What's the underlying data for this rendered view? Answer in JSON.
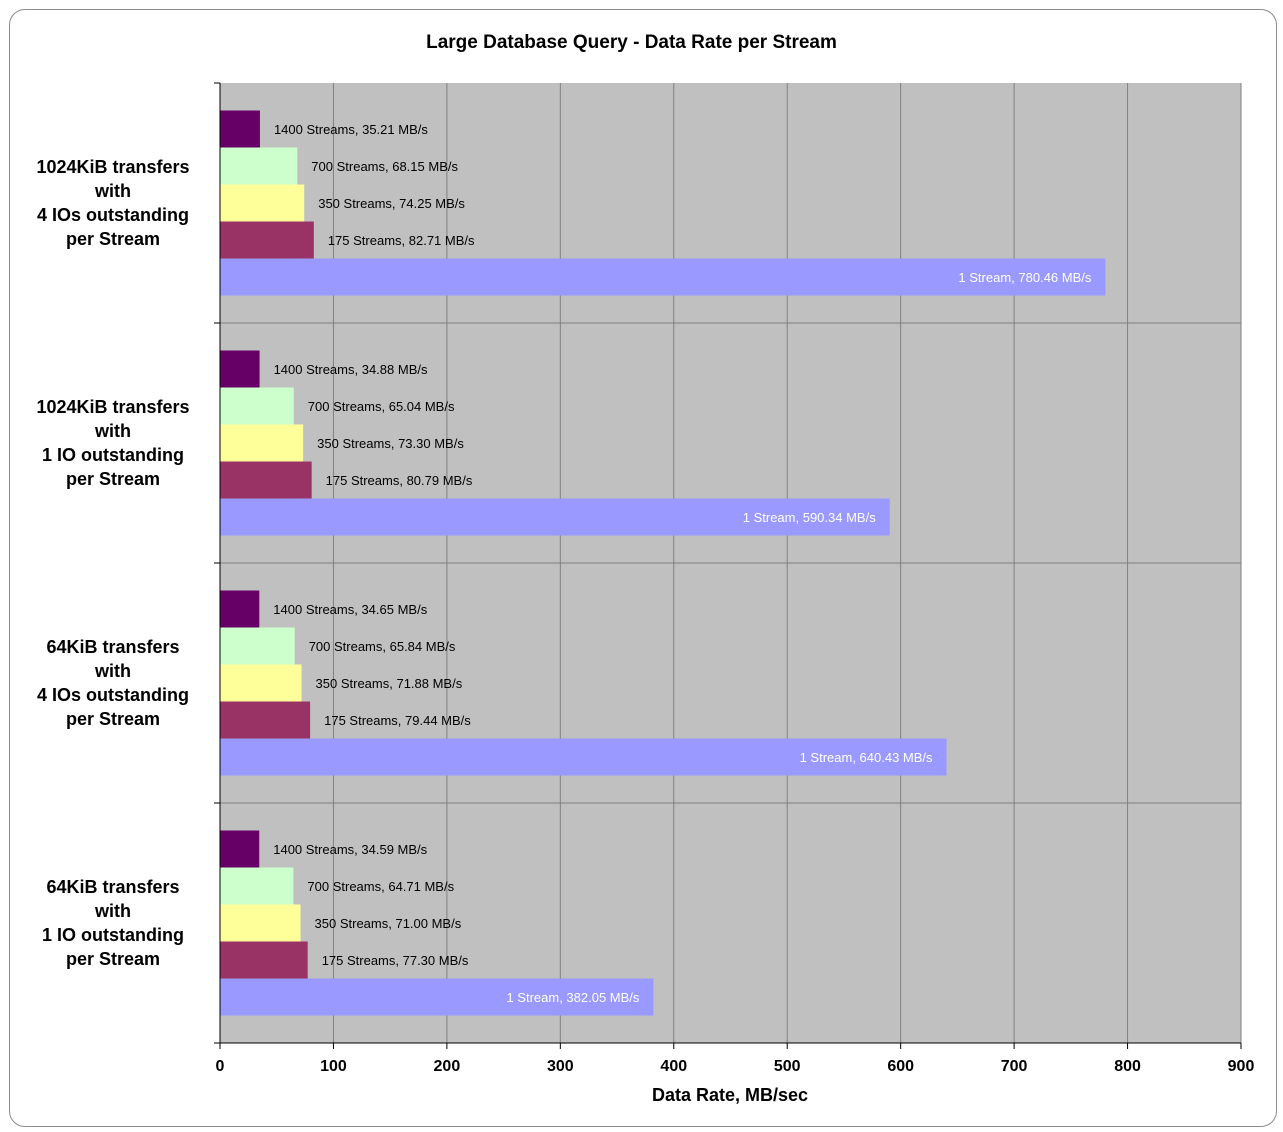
{
  "chart_data": {
    "type": "bar",
    "orientation": "horizontal",
    "title": "Large Database Query - Data Rate per Stream",
    "xlabel": "Data Rate, MB/sec",
    "ylabel": "",
    "xlim": [
      0,
      900
    ],
    "xticks": [
      0,
      100,
      200,
      300,
      400,
      500,
      600,
      700,
      800,
      900
    ],
    "grid": true,
    "legend": "none",
    "colors": {
      "plot_background": "#c0c0c0",
      "gridline": "#808080"
    },
    "categories": [
      [
        "1024KiB transfers",
        "with",
        "4 IOs outstanding",
        "per Stream"
      ],
      [
        "1024KiB transfers",
        "with",
        "1 IO outstanding",
        "per Stream"
      ],
      [
        "64KiB transfers",
        "with",
        "4 IOs outstanding",
        "per Stream"
      ],
      [
        "64KiB transfers",
        "with",
        "1 IO outstanding",
        "per Stream"
      ]
    ],
    "series": [
      {
        "color": "#660066",
        "values": [
          35.21,
          34.88,
          34.65,
          34.59
        ],
        "labels": [
          "1400 Streams, 35.21 MB/s",
          "1400 Streams, 34.88 MB/s",
          "1400 Streams, 34.65 MB/s",
          "1400 Streams, 34.59 MB/s"
        ],
        "label_color": "#000000"
      },
      {
        "color": "#ccffcc",
        "values": [
          68.15,
          65.04,
          65.84,
          64.71
        ],
        "labels": [
          "700 Streams, 68.15 MB/s",
          "700 Streams, 65.04 MB/s",
          "700 Streams, 65.84 MB/s",
          "700 Streams, 64.71 MB/s"
        ],
        "label_color": "#000000"
      },
      {
        "color": "#ffff99",
        "values": [
          74.25,
          73.3,
          71.88,
          71.0
        ],
        "labels": [
          "350 Streams, 74.25 MB/s",
          "350 Streams, 73.30 MB/s",
          "350 Streams, 71.88 MB/s",
          "350 Streams, 71.00 MB/s"
        ],
        "label_color": "#000000"
      },
      {
        "color": "#993366",
        "values": [
          82.71,
          80.79,
          79.44,
          77.3
        ],
        "labels": [
          "175 Streams, 82.71 MB/s",
          "175 Streams, 80.79 MB/s",
          "175 Streams, 79.44 MB/s",
          "175 Streams, 77.30 MB/s"
        ],
        "label_color": "#000000"
      },
      {
        "color": "#9999ff",
        "values": [
          780.46,
          590.34,
          640.43,
          382.05
        ],
        "labels": [
          "1 Stream, 780.46 MB/s",
          "1 Stream, 590.34 MB/s",
          "1 Stream, 640.43 MB/s",
          "1 Stream, 382.05 MB/s"
        ],
        "label_color": "#ffffff",
        "label_inside": true
      }
    ]
  }
}
